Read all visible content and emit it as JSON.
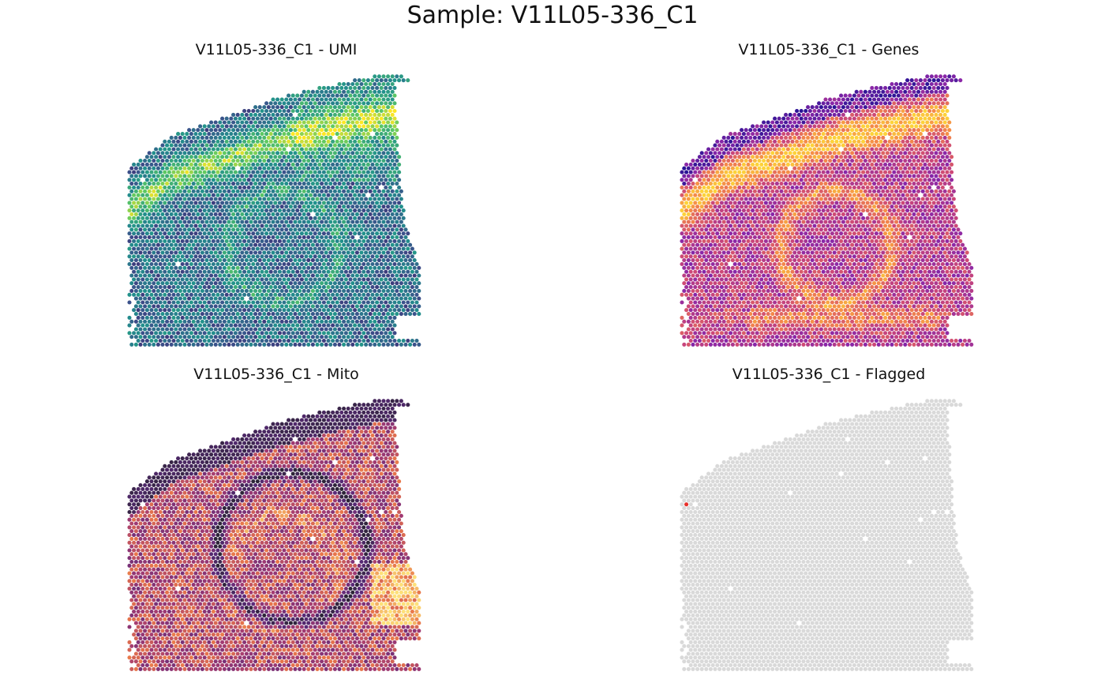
{
  "title": "Sample: V11L05-336_C1",
  "chart_data": [
    {
      "type": "scatter",
      "title": "V11L05-336_C1 - UMI",
      "metric": "umi",
      "palette": [
        "#440154",
        "#3b528b",
        "#21918c",
        "#5ec962",
        "#fde725"
      ]
    },
    {
      "type": "scatter",
      "title": "V11L05-336_C1 - Genes",
      "metric": "genes",
      "palette": [
        "#2a1395",
        "#8a27a8",
        "#cc4778",
        "#f48849",
        "#fdd23b"
      ]
    },
    {
      "type": "scatter",
      "title": "V11L05-336_C1 - Mito",
      "metric": "mito",
      "palette": [
        "#2d2438",
        "#5b2a7a",
        "#a33b72",
        "#e8764a",
        "#fde07a"
      ]
    },
    {
      "type": "scatter",
      "title": "V11L05-336_C1 - Flagged",
      "metric": "flagged",
      "palette": [
        "#d9d9d9",
        "#e8302a"
      ]
    }
  ]
}
